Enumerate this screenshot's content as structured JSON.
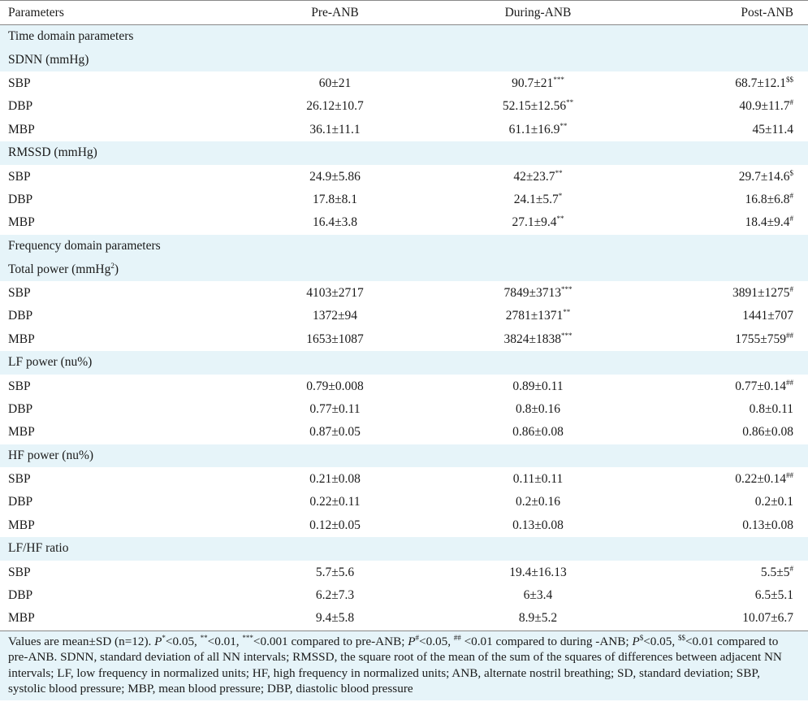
{
  "table": {
    "headers": [
      "Parameters",
      "Pre-ANB",
      "During-ANB",
      "Post-ANB"
    ],
    "sections": [
      {
        "label": "Time domain parameters",
        "kind": "heading"
      },
      {
        "label": "SDNN (mmHg)",
        "kind": "group",
        "rows": [
          {
            "label": "SBP",
            "pre": "60±21",
            "during": "90.7±21",
            "during_sup": "***",
            "post": "68.7±12.1",
            "post_sup": "$$"
          },
          {
            "label": "DBP",
            "pre": "26.12±10.7",
            "during": "52.15±12.56",
            "during_sup": "**",
            "post": "40.9±11.7",
            "post_sup": "#"
          },
          {
            "label": "MBP",
            "pre": "36.1±11.1",
            "during": "61.1±16.9",
            "during_sup": "**",
            "post": "45±11.4",
            "post_sup": ""
          }
        ]
      },
      {
        "label": "RMSSD (mmHg)",
        "kind": "group",
        "rows": [
          {
            "label": "SBP",
            "pre": "24.9±5.86",
            "during": "42±23.7",
            "during_sup": "**",
            "post": "29.7±14.6",
            "post_sup": "$"
          },
          {
            "label": "DBP",
            "pre": "17.8±8.1",
            "during": "24.1±5.7",
            "during_sup": "*",
            "post": "16.8±6.8",
            "post_sup": "#"
          },
          {
            "label": "MBP",
            "pre": "16.4±3.8",
            "during": "27.1±9.4",
            "during_sup": "**",
            "post": "18.4±9.4",
            "post_sup": "#"
          }
        ]
      },
      {
        "label": "Frequency domain parameters",
        "kind": "heading"
      },
      {
        "label": "Total power (mmHg",
        "label_sup": "2",
        "label_end": ")",
        "kind": "group",
        "rows": [
          {
            "label": "SBP",
            "pre": "4103±2717",
            "during": "7849±3713",
            "during_sup": "***",
            "post": "3891±1275",
            "post_sup": "#"
          },
          {
            "label": "DBP",
            "pre": "1372±94",
            "during": "2781±1371",
            "during_sup": "**",
            "post": "1441±707",
            "post_sup": ""
          },
          {
            "label": "MBP",
            "pre": "1653±1087",
            "during": "3824±1838",
            "during_sup": "***",
            "post": "1755±759",
            "post_sup": "##"
          }
        ]
      },
      {
        "label": "LF power (nu%)",
        "kind": "group",
        "rows": [
          {
            "label": "SBP",
            "pre": "0.79±0.008",
            "during": "0.89±0.11",
            "during_sup": "",
            "post": "0.77±0.14",
            "post_sup": "##"
          },
          {
            "label": "DBP",
            "pre": "0.77±0.11",
            "during": "0.8±0.16",
            "during_sup": "",
            "post": "0.8±0.11",
            "post_sup": ""
          },
          {
            "label": "MBP",
            "pre": "0.87±0.05",
            "during": "0.86±0.08",
            "during_sup": "",
            "post": "0.86±0.08",
            "post_sup": ""
          }
        ]
      },
      {
        "label": "HF power (nu%)",
        "kind": "group",
        "rows": [
          {
            "label": "SBP",
            "pre": "0.21±0.08",
            "during": "0.11±0.11",
            "during_sup": "",
            "post": "0.22±0.14",
            "post_sup": "##"
          },
          {
            "label": "DBP",
            "pre": "0.22±0.11",
            "during": "0.2±0.16",
            "during_sup": "",
            "post": "0.2±0.1",
            "post_sup": ""
          },
          {
            "label": "MBP",
            "pre": "0.12±0.05",
            "during": "0.13±0.08",
            "during_sup": "",
            "post": "0.13±0.08",
            "post_sup": ""
          }
        ]
      },
      {
        "label": "LF/HF ratio",
        "kind": "group",
        "rows": [
          {
            "label": "SBP",
            "pre": "5.7±5.6",
            "during": "19.4±16.13",
            "during_sup": "",
            "post": "5.5±5",
            "post_sup": "#"
          },
          {
            "label": "DBP",
            "pre": "6.2±7.3",
            "during": "6±3.4",
            "during_sup": "",
            "post": "6.5±5.1",
            "post_sup": ""
          },
          {
            "label": "MBP",
            "pre": "9.4±5.8",
            "during": "8.9±5.2",
            "during_sup": "",
            "post": "10.07±6.7",
            "post_sup": ""
          }
        ]
      }
    ]
  },
  "footnote": {
    "t1": "Values are mean±SD (n=12). ",
    "p1": "P",
    "s1": "*",
    "t2": "<0.05, ",
    "s2": "**",
    "t3": "<0.01, ",
    "s3": "***",
    "t4": "<0.001 compared to pre-ANB; ",
    "p2": "P",
    "s4": "#",
    "t5": "<0.05, ",
    "s5": "##",
    "t6": " <0.01 compared to during -ANB; ",
    "p3": "P",
    "s6": "$",
    "t7": "<0.05, ",
    "s7": "$$",
    "t8": "<0.01 compared to pre-ANB. SDNN, standard deviation of all NN intervals; RMSSD, the square root of the mean of the sum of the squares of differences between adjacent NN intervals; LF, low frequency in normalized units; HF, high frequency in normalized units; ANB, alternate nostril breathing; SD, standard deviation; SBP, systolic blood pressure; MBP, mean blood pressure; DBP, diastolic blood pressure"
  }
}
